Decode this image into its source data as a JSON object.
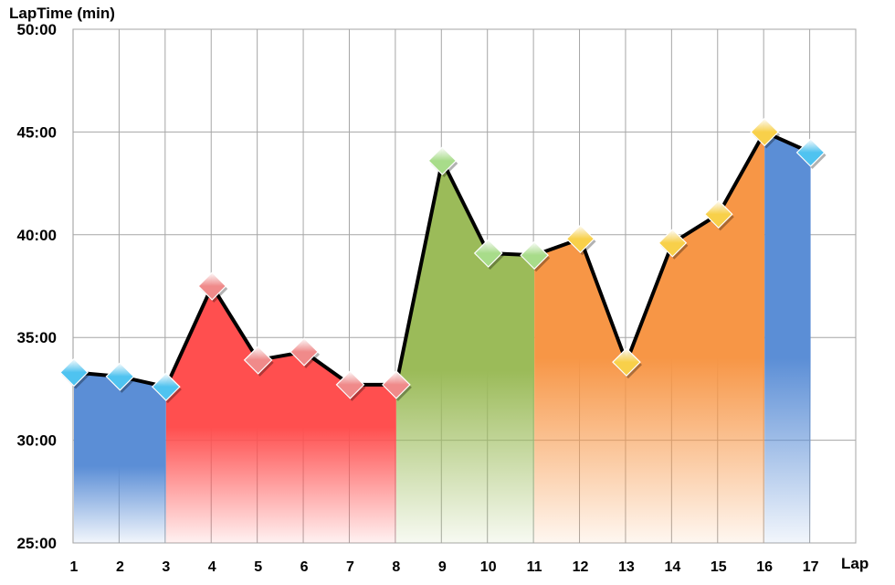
{
  "chart_data": {
    "type": "area",
    "ylabel": "LapTime (min)",
    "xlabel": "Lap",
    "x": [
      1,
      2,
      3,
      4,
      5,
      6,
      7,
      8,
      9,
      10,
      11,
      12,
      13,
      14,
      15,
      16,
      17
    ],
    "xticks": [
      "1",
      "2",
      "3",
      "4",
      "5",
      "6",
      "7",
      "8",
      "9",
      "10",
      "11",
      "12",
      "13",
      "14",
      "15",
      "16",
      "17"
    ],
    "values_minutes": [
      33.3,
      33.1,
      32.6,
      37.5,
      33.9,
      34.3,
      32.7,
      32.7,
      43.6,
      39.1,
      39.0,
      39.8,
      33.8,
      39.6,
      41.0,
      45.0,
      44.0
    ],
    "ylim": [
      25,
      50
    ],
    "yticks": [
      25,
      30,
      35,
      40,
      45,
      50
    ],
    "ytick_labels": [
      "25:00",
      "30:00",
      "35:00",
      "40:00",
      "45:00",
      "50:00"
    ],
    "grid": true,
    "segments": [
      {
        "start_lap": 1,
        "end_lap": 3,
        "color": "#5B8ED6",
        "marker_color": "#4FC3F0"
      },
      {
        "start_lap": 3,
        "end_lap": 8,
        "color": "#FF4F4F",
        "marker_color": "#F08A8A"
      },
      {
        "start_lap": 8,
        "end_lap": 11,
        "color": "#9BBB59",
        "marker_color": "#A8DC8A"
      },
      {
        "start_lap": 11,
        "end_lap": 16,
        "color": "#F79646",
        "marker_color": "#F8D04A"
      },
      {
        "start_lap": 16,
        "end_lap": 17,
        "color": "#5B8ED6",
        "marker_color": "#4FC3F0"
      }
    ],
    "line_color": "#000000"
  }
}
